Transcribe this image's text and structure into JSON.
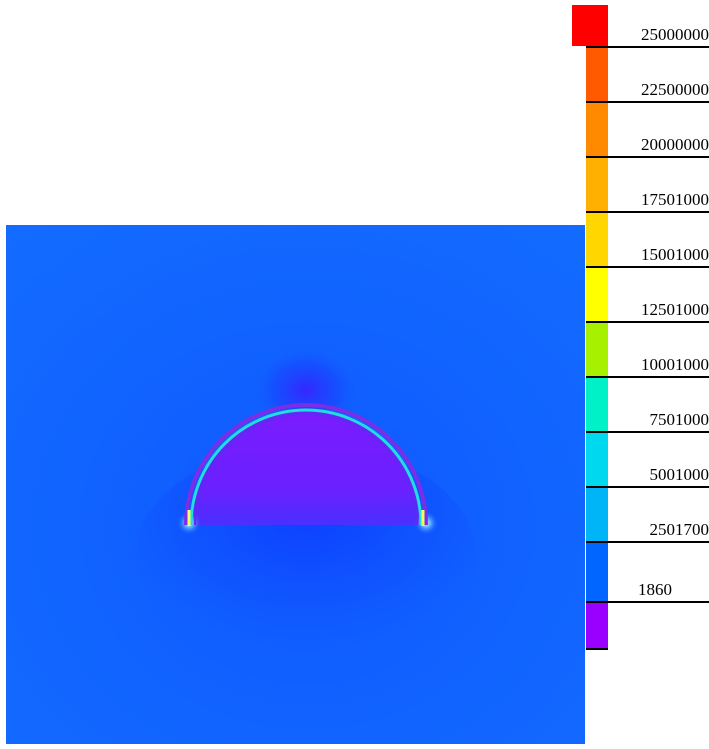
{
  "colorbar": {
    "swatch_colors": [
      "#ff0000",
      "#ff5a00",
      "#ff8a00",
      "#ffb000",
      "#ffd600",
      "#ffff00",
      "#a6f000",
      "#00f0c8",
      "#00d8f0",
      "#00b4f8",
      "#0066ff",
      "#9900ff"
    ],
    "labels": [
      "25000000",
      "22500000",
      "20000000",
      "17501000",
      "15001000",
      "12501000",
      "10001000",
      "7501000",
      "5001000",
      "2501700",
      "1860"
    ]
  },
  "plot": {
    "background_color": "#1164ff",
    "dome_fill_color": "#6a1cff",
    "shell_outer_color": "#7a2ee8",
    "shell_inner_color": "#22dde0",
    "hotspot_color": "#f4ff66"
  }
}
